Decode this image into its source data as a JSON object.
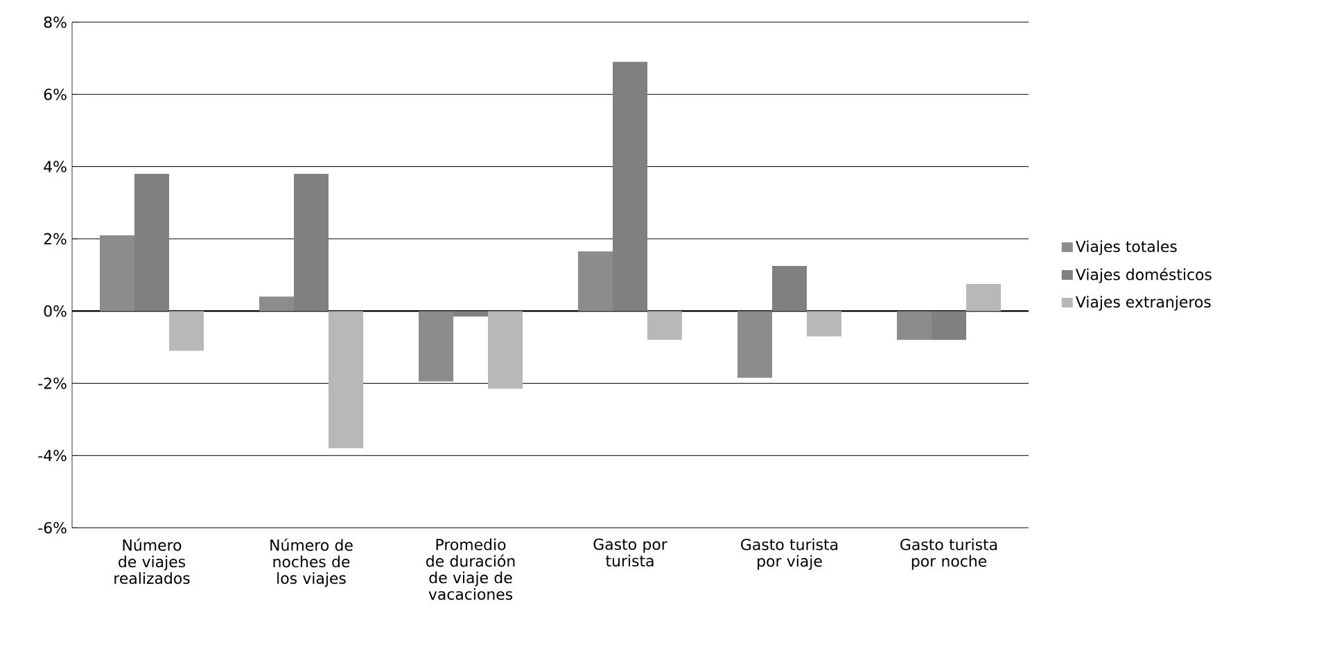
{
  "chart_data": {
    "type": "bar",
    "categories": [
      "Número de viajes realizados",
      "Número de noches de los viajes",
      "Promedio de duración de viaje de vacaciones",
      "Gasto por turista",
      "Gasto turista por viaje",
      "Gasto turista por noche"
    ],
    "series": [
      {
        "name": "Viajes totales",
        "color": "#8c8c8c",
        "values": [
          2.1,
          0.4,
          -1.95,
          1.65,
          -1.85,
          -0.8
        ]
      },
      {
        "name": "Viajes domésticos",
        "color": "#808080",
        "values": [
          3.8,
          3.8,
          -0.15,
          6.9,
          1.25,
          -0.8
        ]
      },
      {
        "name": "Viajes extranjeros",
        "color": "#b8b8b8",
        "values": [
          -1.1,
          -3.8,
          -2.15,
          -0.8,
          -0.7,
          0.75
        ]
      }
    ],
    "ylim": [
      -6,
      8
    ],
    "yticks": [
      {
        "value": -6,
        "label": "-6%"
      },
      {
        "value": -4,
        "label": "-4%"
      },
      {
        "value": -2,
        "label": "-2%"
      },
      {
        "value": 0,
        "label": "0%"
      },
      {
        "value": 2,
        "label": "2%"
      },
      {
        "value": 4,
        "label": "4%"
      },
      {
        "value": 6,
        "label": "6%"
      },
      {
        "value": 8,
        "label": "8%"
      }
    ],
    "grid": "y",
    "legend": "right"
  }
}
